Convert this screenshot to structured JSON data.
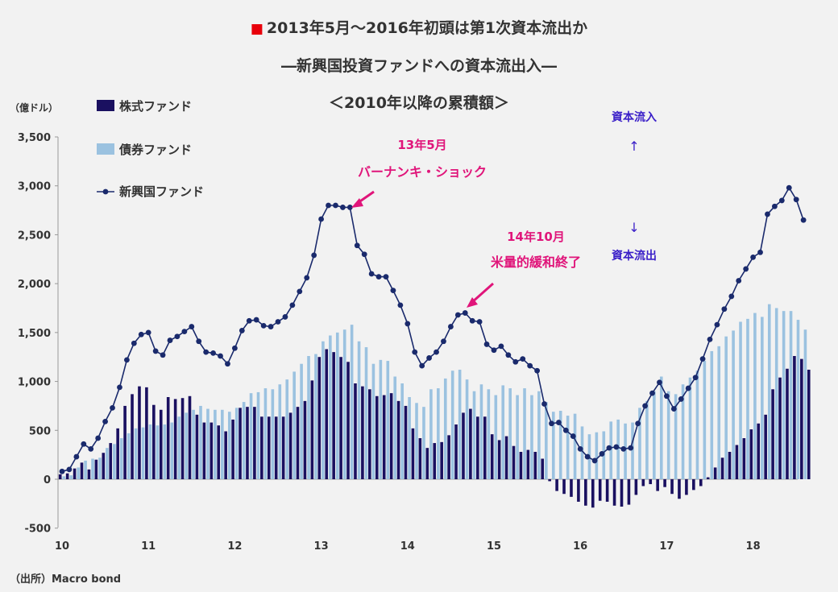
{
  "title": {
    "marker": "■",
    "line1": "2013年5月～2016年初頭は第1次資本流出か",
    "line2": "―新興国投資ファンドへの資本流出入―",
    "line3": "＜2010年以降の累積額＞"
  },
  "source": "（出所）Macro bond",
  "chart_data": {
    "type": "bar",
    "ylabel": "（億ドル）",
    "ylim": [
      -500,
      3500
    ],
    "yticks": [
      -500,
      0,
      500,
      1000,
      1500,
      2000,
      2500,
      3000,
      3500
    ],
    "ytick_labels": [
      "-500",
      "0",
      "500",
      "1,000",
      "1,500",
      "2,000",
      "2,500",
      "3,000",
      "3,500"
    ],
    "xtick_labels": [
      "10",
      "11",
      "12",
      "13",
      "14",
      "15",
      "16",
      "17",
      "18"
    ],
    "x_start": "2010-01",
    "x_end": "2018-06",
    "legend": [
      {
        "name": "株式ファンド",
        "style": "bar",
        "color": "#1a1060"
      },
      {
        "name": "債券ファンド",
        "style": "bar",
        "color": "#9bc2e0"
      },
      {
        "name": "新興国ファンド",
        "style": "line-marker",
        "color": "#1a2a6c"
      }
    ],
    "series": [
      {
        "name": "株式ファンド",
        "values": [
          50,
          60,
          110,
          170,
          100,
          200,
          270,
          370,
          520,
          750,
          870,
          950,
          940,
          760,
          710,
          840,
          820,
          830,
          850,
          660,
          580,
          580,
          550,
          490,
          610,
          730,
          740,
          740,
          640,
          640,
          640,
          640,
          680,
          740,
          800,
          1010,
          1250,
          1330,
          1300,
          1250,
          1200,
          980,
          950,
          920,
          850,
          860,
          880,
          800,
          750,
          520,
          420,
          320,
          370,
          380,
          450,
          560,
          680,
          720,
          640,
          640,
          460,
          400,
          440,
          340,
          280,
          300,
          280,
          210,
          -20,
          -120,
          -150,
          -180,
          -230,
          -270,
          -290,
          -220,
          -230,
          -270,
          -280,
          -260,
          -160,
          -70,
          -50,
          -120,
          -80,
          -150,
          -200,
          -160,
          -110,
          -70,
          20,
          120,
          220,
          280,
          350,
          420,
          510,
          570,
          660,
          920,
          1040,
          1130,
          1260,
          1230,
          1120
        ]
      },
      {
        "name": "新興国ファンド",
        "values": [
          80,
          100,
          230,
          360,
          310,
          420,
          590,
          730,
          940,
          1220,
          1390,
          1480,
          1500,
          1310,
          1270,
          1420,
          1460,
          1510,
          1560,
          1410,
          1300,
          1290,
          1260,
          1180,
          1340,
          1520,
          1620,
          1630,
          1570,
          1560,
          1610,
          1660,
          1780,
          1920,
          2060,
          2290,
          2660,
          2800,
          2800,
          2780,
          2780,
          2390,
          2300,
          2100,
          2070,
          2070,
          1930,
          1780,
          1590,
          1300,
          1160,
          1240,
          1300,
          1410,
          1560,
          1680,
          1700,
          1620,
          1610,
          1380,
          1320,
          1360,
          1270,
          1200,
          1230,
          1160,
          1110,
          770,
          570,
          580,
          500,
          440,
          310,
          230,
          190,
          260,
          320,
          330,
          310,
          320,
          570,
          750,
          880,
          990,
          850,
          720,
          820,
          930,
          1040,
          1230,
          1430,
          1580,
          1740,
          1870,
          2030,
          2150,
          2270,
          2320,
          2710,
          2790,
          2850,
          2980,
          2860,
          2650
        ]
      },
      {
        "name": "債券ファンド",
        "values": [
          30,
          40,
          120,
          190,
          210,
          220,
          320,
          360,
          420,
          470,
          520,
          530,
          560,
          550,
          560,
          580,
          640,
          680,
          710,
          750,
          720,
          710,
          710,
          690,
          730,
          790,
          880,
          890,
          930,
          920,
          970,
          1020,
          1100,
          1180,
          1260,
          1280,
          1410,
          1470,
          1500,
          1530,
          1580,
          1410,
          1350,
          1180,
          1220,
          1210,
          1050,
          980,
          840,
          780,
          740,
          920,
          930,
          1030,
          1110,
          1120,
          1020,
          900,
          970,
          920,
          860,
          960,
          930,
          860,
          930,
          860,
          900,
          790,
          690,
          700,
          650,
          670,
          540,
          460,
          480,
          490,
          590,
          610,
          570,
          580,
          730,
          800,
          900,
          1050,
          900,
          870,
          970,
          1040,
          1110,
          1210,
          1310,
          1360,
          1460,
          1520,
          1610,
          1640,
          1700,
          1660,
          1790,
          1750,
          1720,
          1720,
          1630,
          1530
        ]
      }
    ],
    "annotations": [
      {
        "text1": "13年5月",
        "text2": "バーナンキ・ショック"
      },
      {
        "text1": "14年10月",
        "text2": "米量的緩和終了"
      }
    ],
    "flow_labels": {
      "inflow": "資本流入",
      "up": "↑",
      "down": "↓",
      "outflow": "資本流出"
    }
  }
}
